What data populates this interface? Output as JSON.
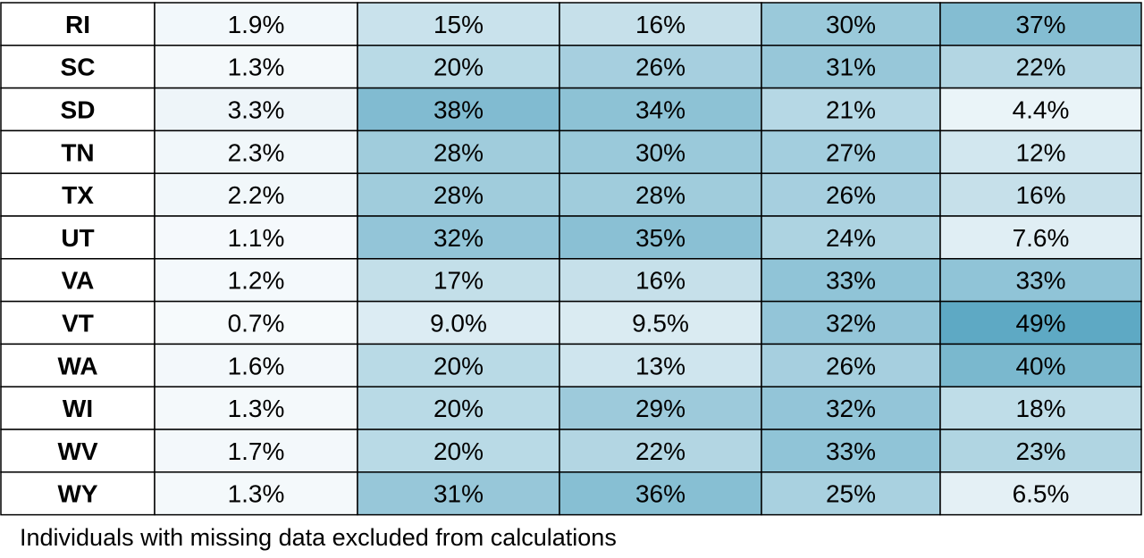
{
  "chart_data": {
    "type": "heatmap",
    "rows": [
      "RI",
      "SC",
      "SD",
      "TN",
      "TX",
      "UT",
      "VA",
      "VT",
      "WA",
      "WI",
      "WV",
      "WY"
    ],
    "values": [
      [
        "1.9%",
        "15%",
        "16%",
        "30%",
        "37%"
      ],
      [
        "1.3%",
        "20%",
        "26%",
        "31%",
        "22%"
      ],
      [
        "3.3%",
        "38%",
        "34%",
        "21%",
        "4.4%"
      ],
      [
        "2.3%",
        "28%",
        "30%",
        "27%",
        "12%"
      ],
      [
        "2.2%",
        "28%",
        "28%",
        "26%",
        "16%"
      ],
      [
        "1.1%",
        "32%",
        "35%",
        "24%",
        "7.6%"
      ],
      [
        "1.2%",
        "17%",
        "16%",
        "33%",
        "33%"
      ],
      [
        "0.7%",
        "9.0%",
        "9.5%",
        "32%",
        "49%"
      ],
      [
        "1.6%",
        "20%",
        "13%",
        "26%",
        "40%"
      ],
      [
        "1.3%",
        "20%",
        "29%",
        "32%",
        "18%"
      ],
      [
        "1.7%",
        "20%",
        "22%",
        "33%",
        "23%"
      ],
      [
        "1.3%",
        "31%",
        "36%",
        "25%",
        "6.5%"
      ]
    ],
    "color_low": "#f8fbfd",
    "color_high": "#5ea9c4",
    "grid": true
  },
  "footnote": "Individuals with missing data excluded from calculations"
}
